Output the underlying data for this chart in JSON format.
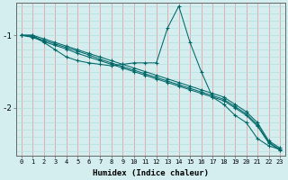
{
  "xlabel": "Humidex (Indice chaleur)",
  "background_color": "#d4eef0",
  "line_color": "#006666",
  "grid_color_v": "#e8a0a0",
  "grid_color_h": "#b8dede",
  "xlim": [
    -0.5,
    23.5
  ],
  "ylim": [
    -2.65,
    -0.55
  ],
  "yticks": [
    -2,
    -1
  ],
  "xticks": [
    0,
    1,
    2,
    3,
    4,
    5,
    6,
    7,
    8,
    9,
    10,
    11,
    12,
    13,
    14,
    15,
    16,
    17,
    18,
    19,
    20,
    21,
    22,
    23
  ],
  "lines": [
    [
      -1.0,
      -1.0,
      -1.05,
      -1.1,
      -1.15,
      -1.2,
      -1.25,
      -1.3,
      -1.35,
      -1.4,
      -1.45,
      -1.5,
      -1.55,
      -1.6,
      -1.65,
      -1.7,
      -1.75,
      -1.8,
      -1.85,
      -1.95,
      -2.05,
      -2.2,
      -2.45,
      -2.55
    ],
    [
      -1.0,
      -1.02,
      -1.07,
      -1.12,
      -1.17,
      -1.22,
      -1.27,
      -1.33,
      -1.38,
      -1.43,
      -1.48,
      -1.53,
      -1.58,
      -1.63,
      -1.68,
      -1.73,
      -1.78,
      -1.83,
      -1.88,
      -1.98,
      -2.08,
      -2.23,
      -2.47,
      -2.57
    ],
    [
      -1.0,
      -1.03,
      -1.09,
      -1.14,
      -1.19,
      -1.25,
      -1.3,
      -1.35,
      -1.4,
      -1.45,
      -1.5,
      -1.55,
      -1.6,
      -1.65,
      -1.7,
      -1.75,
      -1.8,
      -1.85,
      -1.9,
      -2.0,
      -2.1,
      -2.25,
      -2.48,
      -2.58
    ],
    [
      -1.0,
      -1.0,
      -1.1,
      -1.2,
      -1.3,
      -1.35,
      -1.38,
      -1.4,
      -1.42,
      -1.4,
      -1.38,
      -1.38,
      -1.38,
      -0.9,
      -0.6,
      -1.1,
      -1.5,
      -1.85,
      -1.95,
      -2.1,
      -2.2,
      -2.42,
      -2.52,
      -2.57
    ]
  ],
  "marker": "+",
  "markersize": 3.5,
  "linewidth": 0.75
}
